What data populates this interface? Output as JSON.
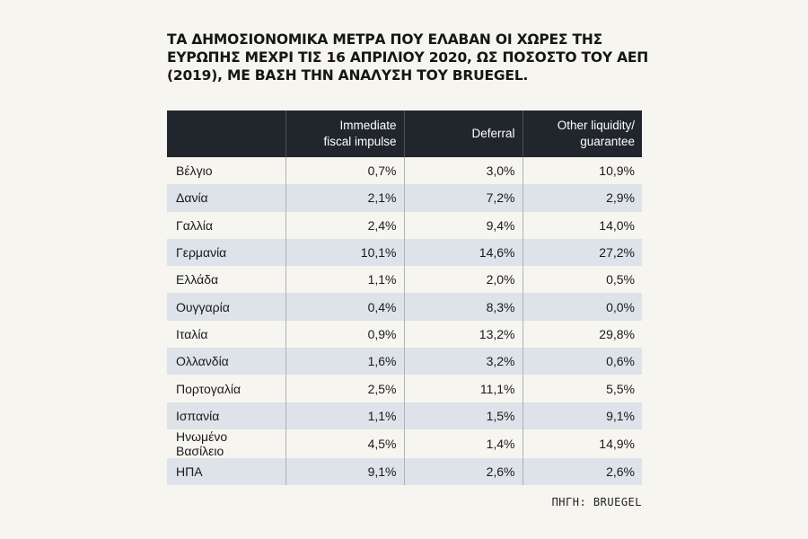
{
  "title_lines": [
    "ΤΑ ΔΗΜΟΣΙΟΝΟΜΙΚΑ ΜΕΤΡΑ ΠΟΥ ΕΛΑΒΑΝ ΟΙ ΧΩΡΕΣ ΤΗΣ",
    "ΕΥΡΩΠΗΣ ΜΕΧΡΙ ΤΙΣ 16 ΑΠΡΙΛΙΟΥ 2020, ΩΣ ΠΟΣΟΣΤΟ ΤΟΥ ΑΕΠ",
    "(2019), ΜΕ ΒΑΣΗ ΤΗΝ ΑΝΑΛΥΣΗ ΤΟΥ BRUEGEL."
  ],
  "source": "ΠΗΓΗ: BRUEGEL",
  "chart_data": {
    "type": "table",
    "columns": [
      "",
      "Immediate fiscal impulse",
      "Deferral",
      "Other liquidity/ guarantee"
    ],
    "header_lines": [
      [],
      [
        "Immediate",
        "fiscal impulse"
      ],
      [
        "Deferral"
      ],
      [
        "Other liquidity/",
        "guarantee"
      ]
    ],
    "rows": [
      [
        "Βέλγιο",
        "0,7%",
        "3,0%",
        "10,9%"
      ],
      [
        "Δανία",
        "2,1%",
        "7,2%",
        "2,9%"
      ],
      [
        "Γαλλία",
        "2,4%",
        "9,4%",
        "14,0%"
      ],
      [
        "Γερμανία",
        "10,1%",
        "14,6%",
        "27,2%"
      ],
      [
        "Ελλάδα",
        "1,1%",
        "2,0%",
        "0,5%"
      ],
      [
        "Ουγγαρία",
        "0,4%",
        "8,3%",
        "0,0%"
      ],
      [
        "Ιταλία",
        "0,9%",
        "13,2%",
        "29,8%"
      ],
      [
        "Ολλανδία",
        "1,6%",
        "3,2%",
        "0,6%"
      ],
      [
        "Πορτογαλία",
        "2,5%",
        "11,1%",
        "5,5%"
      ],
      [
        "Ισπανία",
        "1,1%",
        "1,5%",
        "9,1%"
      ],
      [
        "Ηνωμένο Βασίλειο",
        "4,5%",
        "1,4%",
        "14,9%"
      ],
      [
        "ΗΠΑ",
        "9,1%",
        "2,6%",
        "2,6%"
      ]
    ]
  },
  "colors": {
    "background": "#f7f5f0",
    "header_background": "#20262c",
    "stripe": "#dde3e8"
  }
}
